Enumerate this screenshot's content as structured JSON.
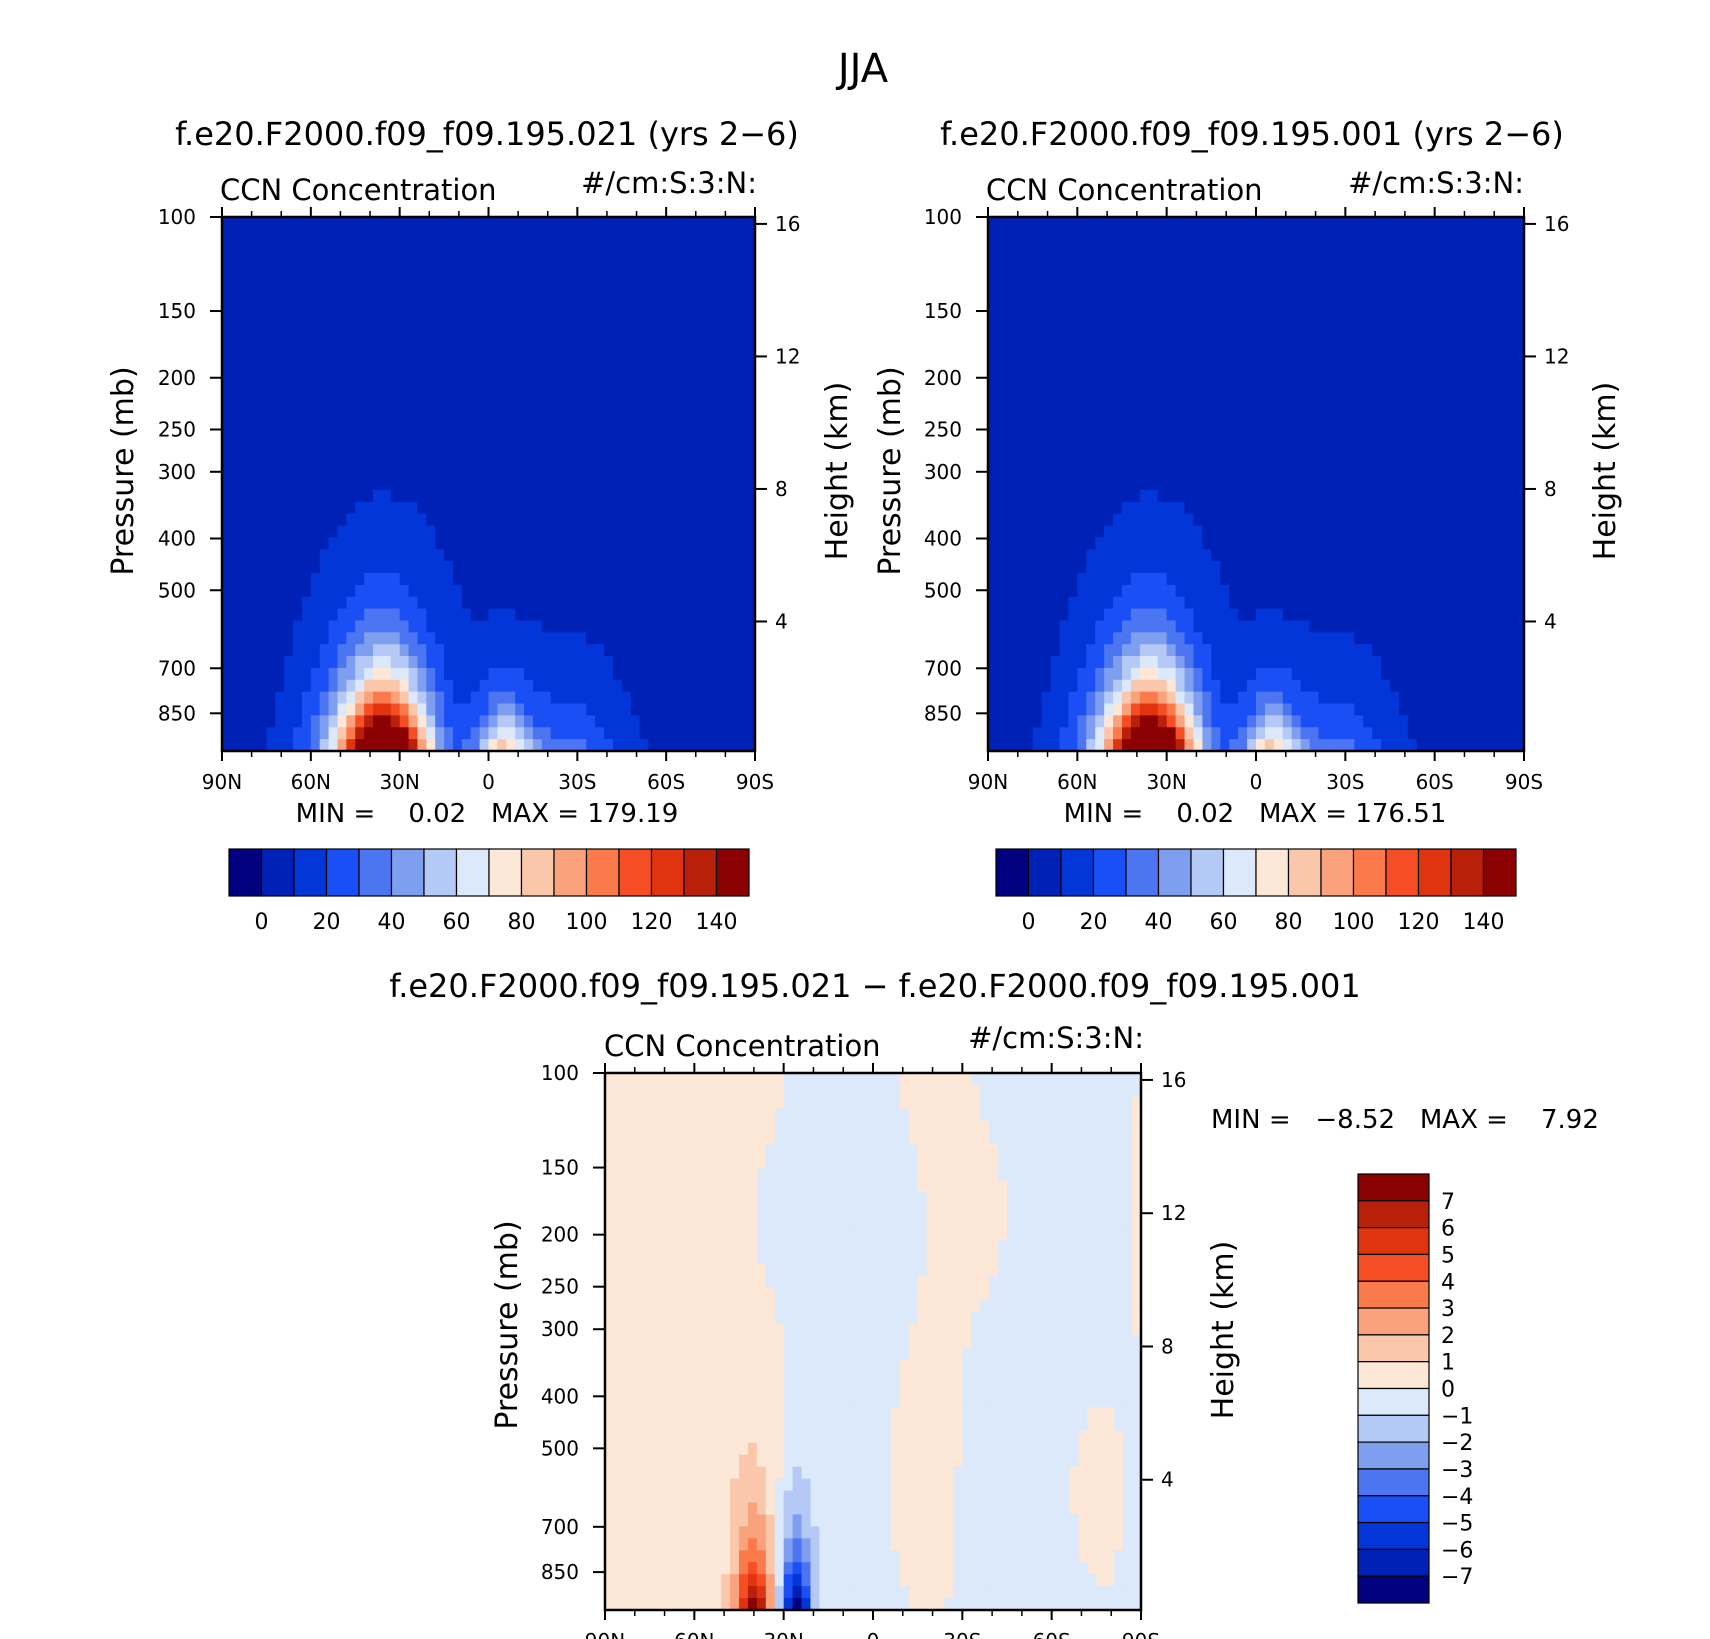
{
  "title": "JJA",
  "panels": [
    {
      "id": "p1",
      "case_title": "f.e20.F2000.f09_f09.195.021 (yrs 2−6)",
      "variable": "CCN Concentration",
      "units": "#/cm:S:3:N:",
      "ylabel_left": "Pressure (mb)",
      "ylabel_right": "Height (km)",
      "min_max": "MIN =    0.02   MAX = 179.19"
    },
    {
      "id": "p2",
      "case_title": "f.e20.F2000.f09_f09.195.001 (yrs 2−6)",
      "variable": "CCN Concentration",
      "units": "#/cm:S:3:N:",
      "ylabel_left": "Pressure (mb)",
      "ylabel_right": "Height (km)",
      "min_max": "MIN =    0.02   MAX = 176.51"
    },
    {
      "id": "p3",
      "case_title": "f.e20.F2000.f09_f09.195.021 − f.e20.F2000.f09_f09.195.001",
      "variable": "CCN Concentration",
      "units": "#/cm:S:3:N:",
      "ylabel_left": "Pressure (mb)",
      "ylabel_right": "Height (km)",
      "min_max": "MIN =   −8.52   MAX =    7.92"
    }
  ],
  "chart_data": {
    "type": "heatmap",
    "x_tick_labels": [
      "90N",
      "60N",
      "30N",
      "0",
      "30S",
      "60S",
      "90S"
    ],
    "x_tick_values": [
      90,
      60,
      30,
      0,
      -30,
      -60,
      -90
    ],
    "xlim": [
      90,
      -90
    ],
    "y_pressure_ticks": [
      100,
      150,
      200,
      250,
      300,
      400,
      500,
      700,
      850
    ],
    "y_pressure_labels": [
      "100",
      "150",
      "200",
      "250",
      "300",
      "400",
      "500",
      "700",
      "850"
    ],
    "ylim_pressure": [
      100,
      1000
    ],
    "y_scale": "log",
    "height_ticks": [
      16,
      12,
      8,
      4
    ],
    "height_labels": [
      "16",
      "12",
      "8",
      "4"
    ],
    "abs_levels": [
      0,
      10,
      20,
      30,
      40,
      50,
      60,
      70,
      80,
      90,
      100,
      110,
      120,
      130,
      140
    ],
    "abs_colorbar_labels": [
      "0",
      "20",
      "40",
      "60",
      "80",
      "100",
      "120",
      "140"
    ],
    "abs_colors": [
      "#000080",
      "#0021b6",
      "#0236d8",
      "#1a4ff5",
      "#4c75f2",
      "#7e9ef0",
      "#b5c9f6",
      "#dbe9fb",
      "#fde7d6",
      "#fbc7ab",
      "#f9a27b",
      "#fa7a4c",
      "#f54e24",
      "#e03410",
      "#b8200a",
      "#8b0000"
    ],
    "diff_levels": [
      -7,
      -6,
      -5,
      -4,
      -3,
      -2,
      -1,
      0,
      1,
      2,
      3,
      4,
      5,
      6,
      7
    ],
    "diff_colorbar_labels": [
      "7",
      "6",
      "5",
      "4",
      "3",
      "2",
      "1",
      "0",
      "−1",
      "−2",
      "−3",
      "−4",
      "−5",
      "−6",
      "−7"
    ],
    "diff_colors": [
      "#000080",
      "#0021b6",
      "#0236d8",
      "#1a4ff5",
      "#4c75f2",
      "#7e9ef0",
      "#b5c9f6",
      "#dbe9fb",
      "#fde7d6",
      "#fbc7ab",
      "#f9a27b",
      "#fa7a4c",
      "#f54e24",
      "#e03410",
      "#b8200a",
      "#8b0000"
    ],
    "abs_summary": {
      "panel1": {
        "min": 0.02,
        "max": 179.19
      },
      "panel2": {
        "min": 0.02,
        "max": 176.51
      }
    },
    "diff_summary": {
      "min": -8.52,
      "max": 7.92
    }
  }
}
